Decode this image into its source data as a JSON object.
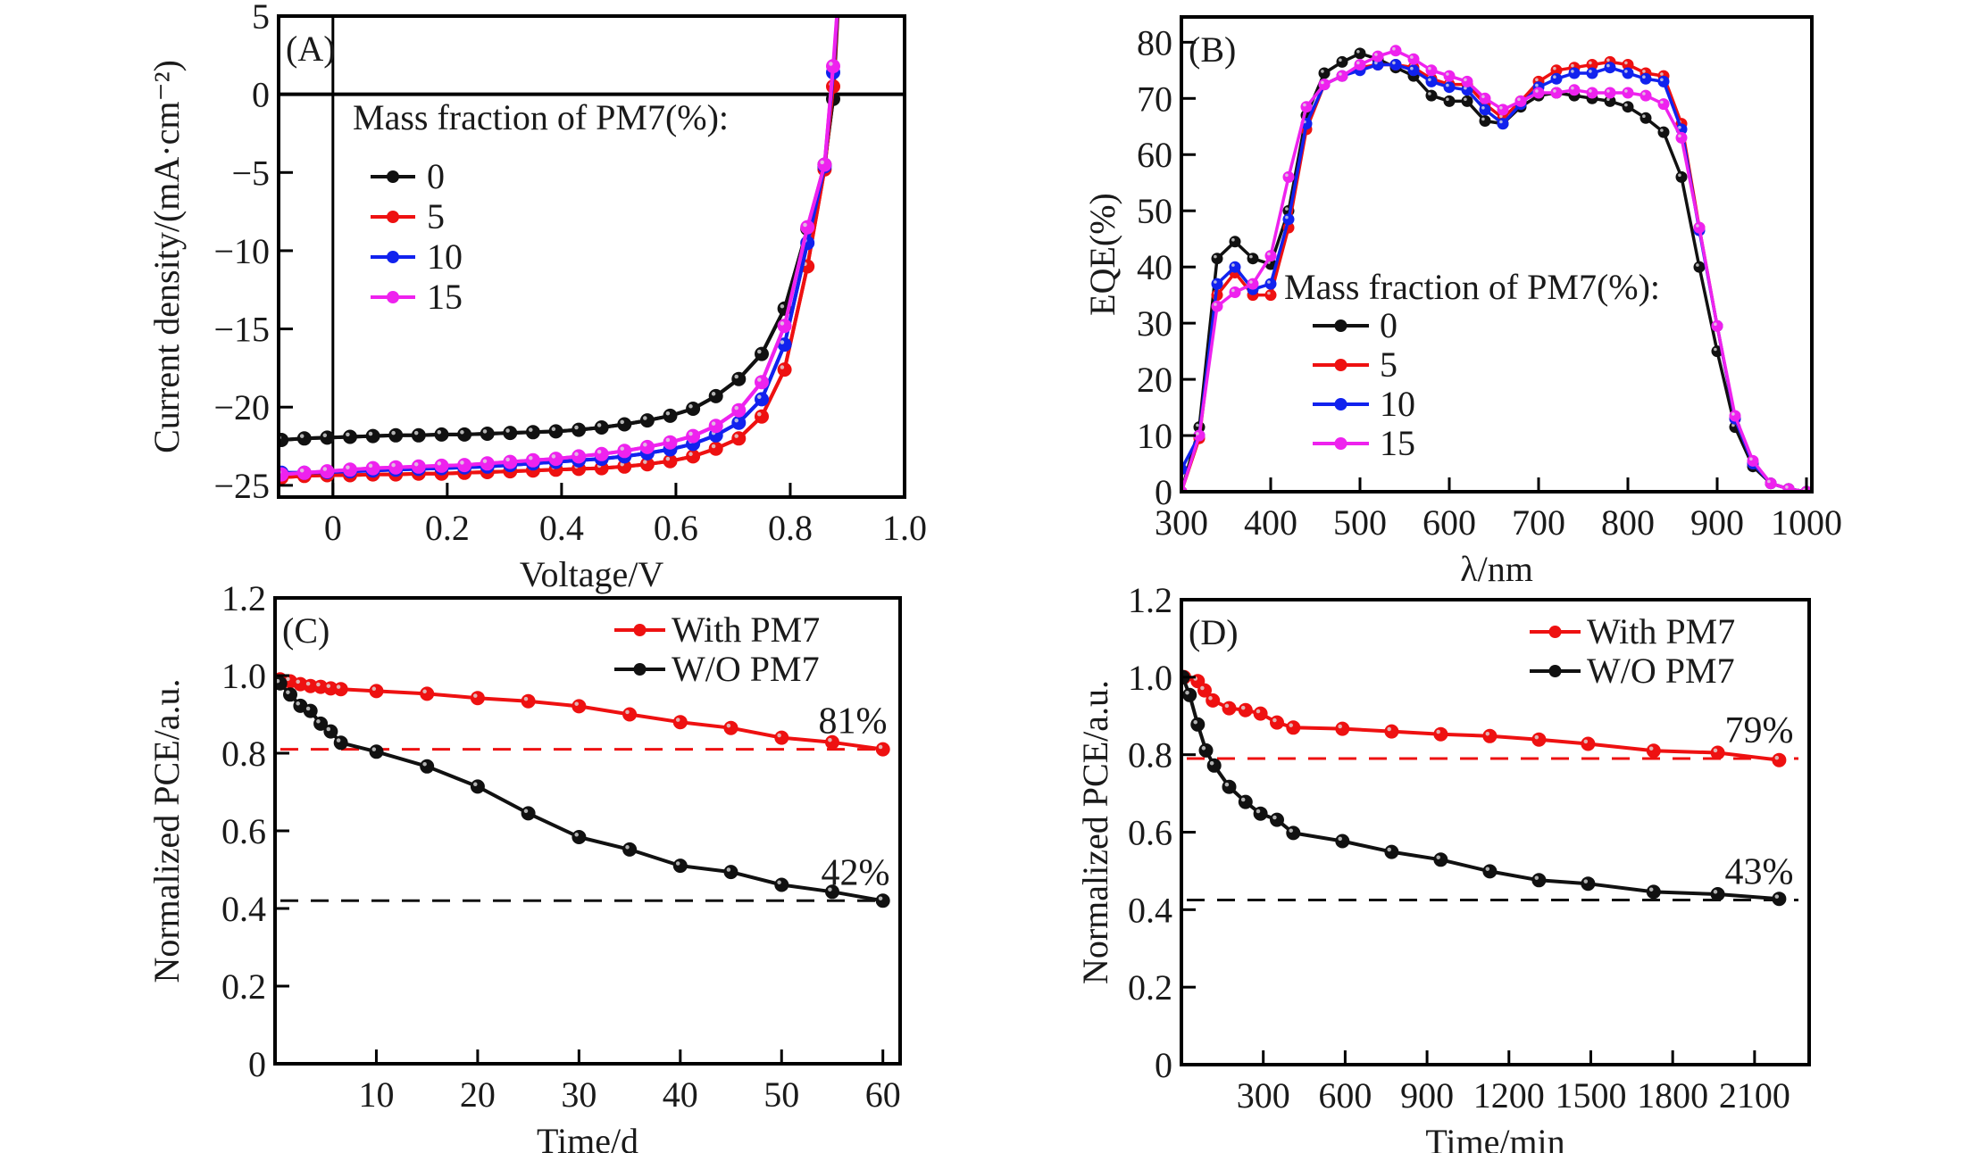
{
  "figure": {
    "panels": [
      "A",
      "B",
      "C",
      "D"
    ]
  },
  "colors": {
    "black": "#111111",
    "red": "#ee1111",
    "blue": "#1122ee",
    "magenta": "#ee22ee",
    "axis": "#000000"
  },
  "chart_data": [
    {
      "id": "A",
      "type": "line",
      "panel_label": "(A)",
      "title": "",
      "xlabel": "Voltage/V",
      "ylabel": "Current density/(mA·cm⁻²)",
      "xlim": [
        -0.095,
        1.0
      ],
      "ylim": [
        -25.75,
        5
      ],
      "xticks": [
        0,
        0.2,
        0.4,
        0.6,
        0.8,
        1.0
      ],
      "xtick_labels": [
        "0",
        "0.2",
        "0.4",
        "0.6",
        "0.8",
        "1.0"
      ],
      "yticks": [
        5,
        0,
        -5,
        -10,
        -15,
        -20,
        -25
      ],
      "ytick_labels": [
        "5",
        "0",
        "−5",
        "−10",
        "−15",
        "−20",
        "−25"
      ],
      "reference_lines": {
        "x": 0,
        "y": 0
      },
      "legend": {
        "title": "Mass fraction of PM7(%):",
        "position": "upper-left"
      },
      "x": [
        -0.09,
        -0.05,
        -0.01,
        0.03,
        0.07,
        0.11,
        0.15,
        0.19,
        0.23,
        0.27,
        0.31,
        0.35,
        0.39,
        0.43,
        0.47,
        0.51,
        0.55,
        0.59,
        0.63,
        0.67,
        0.71,
        0.75,
        0.79,
        0.83,
        0.86,
        0.875
      ],
      "series": [
        {
          "name": "0",
          "color": "black",
          "values": [
            -22.1,
            -22.0,
            -21.95,
            -21.9,
            -21.85,
            -21.8,
            -21.8,
            -21.75,
            -21.75,
            -21.7,
            -21.65,
            -21.6,
            -21.55,
            -21.45,
            -21.3,
            -21.1,
            -20.85,
            -20.55,
            -20.1,
            -19.3,
            -18.2,
            -16.6,
            -13.7,
            -8.6,
            -4.5,
            -0.3
          ]
        },
        {
          "name": "5",
          "color": "red",
          "values": [
            -24.5,
            -24.4,
            -24.35,
            -24.35,
            -24.3,
            -24.3,
            -24.25,
            -24.25,
            -24.2,
            -24.15,
            -24.1,
            -24.05,
            -24.0,
            -23.95,
            -23.9,
            -23.8,
            -23.65,
            -23.45,
            -23.15,
            -22.65,
            -22.0,
            -20.6,
            -17.6,
            -11.0,
            -4.8,
            0.5
          ]
        },
        {
          "name": "10",
          "color": "blue",
          "values": [
            -24.2,
            -24.2,
            -24.15,
            -24.1,
            -24.05,
            -24.0,
            -23.95,
            -23.9,
            -23.85,
            -23.8,
            -23.7,
            -23.6,
            -23.5,
            -23.4,
            -23.3,
            -23.15,
            -22.95,
            -22.7,
            -22.35,
            -21.8,
            -21.0,
            -19.5,
            -16.0,
            -9.5,
            -4.6,
            1.4
          ]
        },
        {
          "name": "15",
          "color": "magenta",
          "values": [
            -24.3,
            -24.2,
            -24.1,
            -24.0,
            -23.9,
            -23.85,
            -23.8,
            -23.75,
            -23.7,
            -23.6,
            -23.5,
            -23.4,
            -23.3,
            -23.15,
            -23.0,
            -22.8,
            -22.55,
            -22.25,
            -21.85,
            -21.2,
            -20.2,
            -18.4,
            -14.8,
            -8.5,
            -4.5,
            1.8
          ]
        }
      ]
    },
    {
      "id": "B",
      "type": "line",
      "panel_label": "(B)",
      "title": "",
      "xlabel": "λ/nm",
      "ylabel": "EQE(%)",
      "xlim": [
        300,
        1006
      ],
      "ylim": [
        0,
        84.5
      ],
      "xticks": [
        300,
        400,
        500,
        600,
        700,
        800,
        900,
        1000
      ],
      "xtick_labels": [
        "300",
        "400",
        "500",
        "600",
        "700",
        "800",
        "900",
        "1000"
      ],
      "yticks": [
        0,
        10,
        20,
        30,
        40,
        50,
        60,
        70,
        80
      ],
      "ytick_labels": [
        "0",
        "10",
        "20",
        "30",
        "40",
        "50",
        "60",
        "70",
        "80"
      ],
      "legend": {
        "title": "Mass fraction of PM7(%):",
        "position": "lower-center"
      },
      "x": [
        300,
        320,
        340,
        360,
        380,
        400,
        420,
        440,
        460,
        480,
        500,
        520,
        540,
        560,
        580,
        600,
        620,
        640,
        660,
        680,
        700,
        720,
        740,
        760,
        780,
        800,
        820,
        840,
        860,
        880,
        900,
        920,
        940,
        960,
        980,
        1000
      ],
      "series": [
        {
          "name": "0",
          "color": "black",
          "values": [
            0,
            11.5,
            41.5,
            44.5,
            41.5,
            40.5,
            50,
            67,
            74.5,
            76.5,
            78,
            77,
            75.5,
            74,
            70.5,
            69.5,
            69.5,
            66,
            65.5,
            68.5,
            70.5,
            71,
            70.5,
            70,
            69.5,
            68.5,
            66.5,
            64,
            56,
            40,
            25,
            11.5,
            4.5,
            1.5,
            0.5,
            0
          ]
        },
        {
          "name": "5",
          "color": "red",
          "values": [
            0,
            9.5,
            35,
            39,
            35,
            35,
            47,
            64.5,
            72.5,
            74,
            75.5,
            76,
            76,
            75.5,
            73.5,
            72.5,
            72.5,
            69,
            66.5,
            69.5,
            73,
            75,
            75.5,
            76,
            76.5,
            76,
            74.5,
            74,
            65.5,
            47,
            29.5,
            13,
            5,
            1.5,
            0.5,
            0
          ]
        },
        {
          "name": "10",
          "color": "blue",
          "values": [
            4,
            10,
            37,
            40,
            36,
            37,
            48.5,
            65.5,
            72.5,
            74,
            75,
            76,
            76,
            75,
            73,
            72,
            71.5,
            68,
            65.5,
            69,
            72,
            73.5,
            74.5,
            74.5,
            75.5,
            74.5,
            73.5,
            73,
            64.5,
            46.5,
            29.5,
            13,
            5,
            1.5,
            0.5,
            0
          ]
        },
        {
          "name": "15",
          "color": "magenta",
          "values": [
            0,
            10,
            33,
            35.5,
            37,
            42,
            56,
            68.5,
            72.5,
            74,
            76,
            77.5,
            78.5,
            77,
            75,
            74,
            73,
            70,
            68,
            69.5,
            71,
            71,
            71.5,
            71,
            71,
            71,
            70.5,
            69,
            63,
            47,
            29.5,
            13.5,
            5.5,
            1.5,
            0.5,
            0
          ]
        }
      ]
    },
    {
      "id": "C",
      "type": "line",
      "panel_label": "(C)",
      "title": "",
      "xlabel": "Time/d",
      "ylabel": "Normalized PCE/a.u.",
      "xlim": [
        0,
        61.7
      ],
      "ylim": [
        0,
        1.2
      ],
      "xticks": [
        10,
        20,
        30,
        40,
        50,
        60
      ],
      "xtick_labels": [
        "10",
        "20",
        "30",
        "40",
        "50",
        "60"
      ],
      "yticks": [
        0,
        0.2,
        0.4,
        0.6,
        0.8,
        1.0,
        1.2
      ],
      "ytick_labels": [
        "0",
        "0.2",
        "0.4",
        "0.6",
        "0.8",
        "1.0",
        "1.2"
      ],
      "legend": {
        "position": "upper-right"
      },
      "x": [
        0.5,
        1.5,
        2.5,
        3.5,
        4.5,
        5.5,
        6.5,
        10,
        15,
        20,
        25,
        30,
        35,
        40,
        45,
        50,
        55,
        60
      ],
      "series": [
        {
          "name": "With PM7",
          "color": "red",
          "values": [
            0.99,
            0.985,
            0.978,
            0.973,
            0.971,
            0.967,
            0.965,
            0.96,
            0.953,
            0.942,
            0.934,
            0.921,
            0.9,
            0.88,
            0.865,
            0.84,
            0.828,
            0.81
          ]
        },
        {
          "name": "W/O PM7",
          "color": "black",
          "values": [
            0.98,
            0.951,
            0.922,
            0.909,
            0.876,
            0.856,
            0.827,
            0.804,
            0.766,
            0.714,
            0.645,
            0.584,
            0.552,
            0.51,
            0.494,
            0.461,
            0.443,
            0.42
          ]
        }
      ],
      "hlines": [
        {
          "y": 0.81,
          "color": "red",
          "style": "dashed",
          "label": "81%"
        },
        {
          "y": 0.42,
          "color": "black",
          "style": "dashed",
          "label": "42%"
        }
      ]
    },
    {
      "id": "D",
      "type": "line",
      "panel_label": "(D)",
      "title": "",
      "xlabel": "Time/min",
      "ylabel": "Normalized PCE/a.u.",
      "xlim": [
        0,
        2300
      ],
      "ylim": [
        0,
        1.2
      ],
      "xticks": [
        300,
        600,
        900,
        1200,
        1500,
        1800,
        2100
      ],
      "xtick_labels": [
        "300",
        "600",
        "900",
        "1200",
        "1500",
        "1800",
        "2100"
      ],
      "yticks": [
        0,
        0.2,
        0.4,
        0.6,
        0.8,
        1.0,
        1.2
      ],
      "ytick_labels": [
        "0",
        "0.2",
        "0.4",
        "0.6",
        "0.8",
        "1.0",
        "1.2"
      ],
      "legend": {
        "position": "upper-right"
      },
      "series": [
        {
          "name": "With PM7",
          "color": "red",
          "x": [
            10,
            60,
            85,
            115,
            175,
            235,
            290,
            350,
            410,
            590,
            770,
            950,
            1130,
            1310,
            1490,
            1730,
            1965,
            2190
          ],
          "values": [
            1.0,
            0.99,
            0.966,
            0.94,
            0.92,
            0.915,
            0.906,
            0.883,
            0.87,
            0.867,
            0.86,
            0.853,
            0.848,
            0.839,
            0.828,
            0.81,
            0.805,
            0.786
          ]
        },
        {
          "name": "W/O PM7",
          "color": "black",
          "x": [
            5,
            30,
            60,
            90,
            120,
            175,
            235,
            290,
            350,
            410,
            590,
            770,
            950,
            1130,
            1310,
            1490,
            1730,
            1965,
            2190
          ],
          "values": [
            1.0,
            0.954,
            0.878,
            0.811,
            0.772,
            0.717,
            0.678,
            0.648,
            0.632,
            0.598,
            0.577,
            0.549,
            0.529,
            0.499,
            0.476,
            0.467,
            0.446,
            0.44,
            0.428
          ]
        }
      ],
      "hlines": [
        {
          "y": 0.79,
          "color": "red",
          "style": "dashed",
          "label": "79%"
        },
        {
          "y": 0.425,
          "color": "black",
          "style": "dashed",
          "label": "43%"
        }
      ]
    }
  ]
}
